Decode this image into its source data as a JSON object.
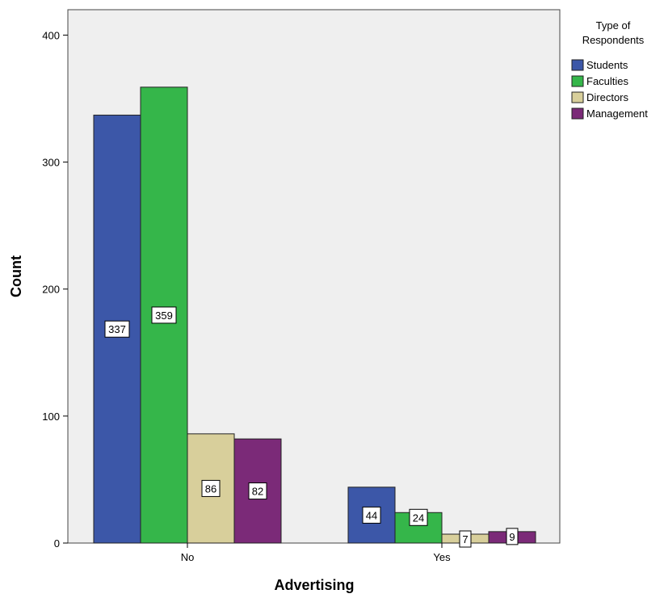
{
  "chart_data": {
    "type": "bar",
    "xlabel": "Advertising",
    "ylabel": "Count",
    "categories": [
      "No",
      "Yes"
    ],
    "ylim": [
      0,
      420
    ],
    "yticks": [
      0,
      100,
      200,
      300,
      400
    ],
    "legend": {
      "title_lines": [
        "Type of",
        "Respondents"
      ],
      "placement": "right"
    },
    "series": [
      {
        "name": "Students",
        "color": "#3c57a8",
        "values": [
          337,
          44
        ]
      },
      {
        "name": "Faculties",
        "color": "#35b64a",
        "values": [
          359,
          24
        ]
      },
      {
        "name": "Directors",
        "color": "#d8cf9b",
        "values": [
          86,
          7
        ]
      },
      {
        "name": "Management",
        "color": "#7b2a78",
        "values": [
          82,
          9
        ]
      }
    ],
    "plot_background": "#efefef",
    "grid": false
  }
}
